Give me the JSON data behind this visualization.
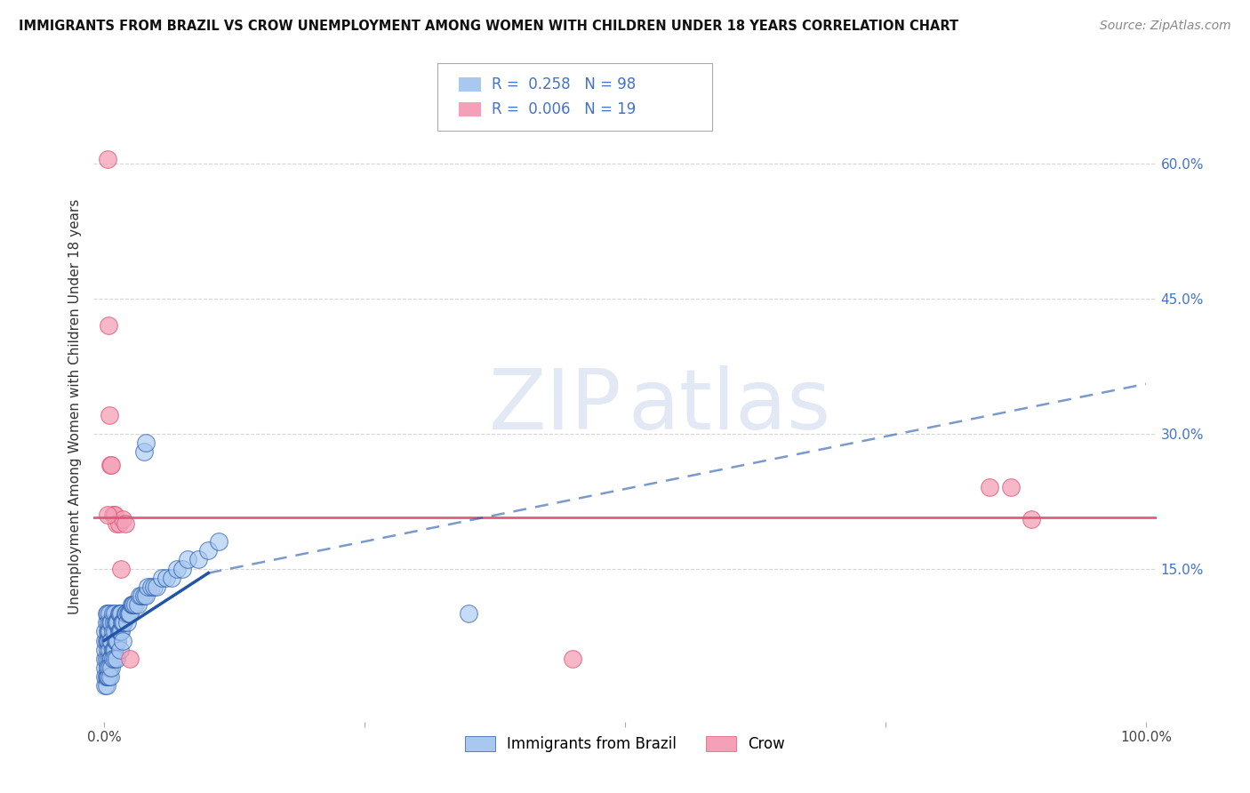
{
  "title": "IMMIGRANTS FROM BRAZIL VS CROW UNEMPLOYMENT AMONG WOMEN WITH CHILDREN UNDER 18 YEARS CORRELATION CHART",
  "source": "Source: ZipAtlas.com",
  "ylabel": "Unemployment Among Women with Children Under 18 years",
  "yticks": [
    0.0,
    0.15,
    0.3,
    0.45,
    0.6
  ],
  "ytick_labels": [
    "",
    "15.0%",
    "30.0%",
    "45.0%",
    "60.0%"
  ],
  "blue_color": "#A8C8F0",
  "pink_color": "#F4A0B8",
  "blue_line_color": "#2255AA",
  "pink_line_color": "#E05575",
  "legend_blue_label": "Immigrants from Brazil",
  "legend_pink_label": "Crow",
  "R_blue": 0.258,
  "N_blue": 98,
  "R_pink": 0.006,
  "N_pink": 19,
  "watermark_zip": "ZIP",
  "watermark_atlas": "atlas",
  "blue_scatter_x": [
    0.001,
    0.001,
    0.001,
    0.001,
    0.001,
    0.002,
    0.002,
    0.002,
    0.002,
    0.002,
    0.003,
    0.003,
    0.003,
    0.003,
    0.003,
    0.004,
    0.004,
    0.004,
    0.004,
    0.005,
    0.005,
    0.005,
    0.005,
    0.006,
    0.006,
    0.006,
    0.007,
    0.007,
    0.007,
    0.008,
    0.008,
    0.008,
    0.009,
    0.009,
    0.01,
    0.01,
    0.01,
    0.011,
    0.011,
    0.012,
    0.012,
    0.013,
    0.013,
    0.014,
    0.014,
    0.015,
    0.015,
    0.016,
    0.016,
    0.017,
    0.018,
    0.019,
    0.02,
    0.021,
    0.022,
    0.023,
    0.024,
    0.025,
    0.026,
    0.027,
    0.028,
    0.03,
    0.032,
    0.034,
    0.036,
    0.038,
    0.04,
    0.042,
    0.045,
    0.048,
    0.05,
    0.055,
    0.06,
    0.065,
    0.07,
    0.075,
    0.08,
    0.09,
    0.1,
    0.11,
    0.001,
    0.001,
    0.002,
    0.002,
    0.003,
    0.003,
    0.004,
    0.005,
    0.006,
    0.007,
    0.008,
    0.01,
    0.012,
    0.015,
    0.018,
    0.35,
    0.038,
    0.04
  ],
  "blue_scatter_y": [
    0.04,
    0.05,
    0.06,
    0.07,
    0.08,
    0.03,
    0.05,
    0.07,
    0.09,
    0.1,
    0.04,
    0.06,
    0.07,
    0.08,
    0.1,
    0.05,
    0.07,
    0.08,
    0.09,
    0.04,
    0.06,
    0.08,
    0.1,
    0.05,
    0.07,
    0.09,
    0.05,
    0.07,
    0.09,
    0.06,
    0.08,
    0.1,
    0.06,
    0.09,
    0.06,
    0.08,
    0.1,
    0.07,
    0.09,
    0.07,
    0.09,
    0.07,
    0.09,
    0.08,
    0.1,
    0.08,
    0.1,
    0.08,
    0.1,
    0.09,
    0.09,
    0.09,
    0.1,
    0.1,
    0.09,
    0.1,
    0.1,
    0.1,
    0.11,
    0.11,
    0.11,
    0.11,
    0.11,
    0.12,
    0.12,
    0.12,
    0.12,
    0.13,
    0.13,
    0.13,
    0.13,
    0.14,
    0.14,
    0.14,
    0.15,
    0.15,
    0.16,
    0.16,
    0.17,
    0.18,
    0.02,
    0.03,
    0.02,
    0.03,
    0.03,
    0.04,
    0.03,
    0.04,
    0.03,
    0.04,
    0.05,
    0.05,
    0.05,
    0.06,
    0.07,
    0.1,
    0.28,
    0.29
  ],
  "pink_scatter_x": [
    0.003,
    0.004,
    0.005,
    0.006,
    0.007,
    0.008,
    0.009,
    0.01,
    0.012,
    0.014,
    0.016,
    0.018,
    0.02,
    0.45,
    0.85,
    0.87,
    0.89,
    0.025,
    0.003
  ],
  "pink_scatter_y": [
    0.605,
    0.42,
    0.32,
    0.265,
    0.265,
    0.21,
    0.21,
    0.21,
    0.2,
    0.2,
    0.15,
    0.205,
    0.2,
    0.05,
    0.24,
    0.24,
    0.205,
    0.05,
    0.21
  ],
  "blue_trend_x_start": 0.0,
  "blue_trend_x_solid_end": 0.1,
  "blue_trend_x_dashed_end": 1.0,
  "blue_trend_y_start": 0.07,
  "blue_trend_y_solid_end": 0.145,
  "blue_trend_y_dashed_end": 0.355,
  "pink_trend_y": 0.207,
  "background_color": "#FFFFFF",
  "grid_color": "#CCCCCC",
  "ylim_max": 0.68,
  "xlim_min": -0.01,
  "xlim_max": 1.01
}
